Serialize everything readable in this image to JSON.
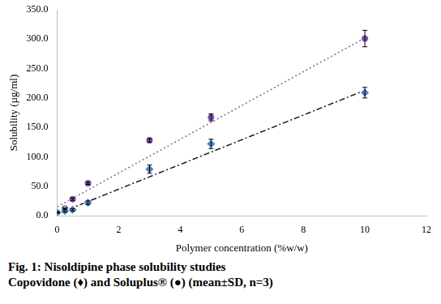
{
  "chart_data": {
    "type": "scatter",
    "caption": [
      "Fig. 1: Nisoldipine phase solubility studies",
      "Copovidone (♦) and Soluplus® (●) (mean±SD, n=3)"
    ],
    "x_label": "Polymer concentration (%w/w)",
    "y_label": "Solubility (µg/ml)",
    "xlim": [
      0,
      12
    ],
    "xticks": [
      0,
      2,
      4,
      6,
      8,
      10,
      12
    ],
    "ylim": [
      0,
      350
    ],
    "yticks": [
      {
        "value": 0,
        "label": "0.0"
      },
      {
        "value": 50,
        "label": "50.0"
      },
      {
        "value": 100,
        "label": "100.0"
      },
      {
        "value": 150,
        "label": "150.0"
      },
      {
        "value": 200,
        "label": "200.0"
      },
      {
        "value": 250,
        "label": "250.0"
      },
      {
        "value": 300,
        "label": "300.0"
      },
      {
        "value": 350,
        "label": "350.0"
      }
    ],
    "grid": false,
    "series": [
      {
        "type": "line",
        "color": "#1a1a1a",
        "line_style": "dashdot",
        "x": [
          0,
          10
        ],
        "values": [
          3,
          213
        ]
      },
      {
        "type": "line",
        "color": "#8064a2",
        "line_style": "dotted",
        "x": [
          0,
          10
        ],
        "values": [
          15,
          302
        ]
      },
      {
        "name": "Copovidone",
        "type": "scatter",
        "color": "#4f81bd",
        "marker": "diamond",
        "x": [
          0,
          0.25,
          0.5,
          1,
          3,
          5,
          10
        ],
        "values": [
          5,
          8,
          10,
          22,
          79,
          122,
          209
        ],
        "errors": [
          1,
          2,
          2,
          3,
          7,
          8,
          9
        ]
      },
      {
        "name": "Soluplus®",
        "type": "scatter",
        "color": "#7b4fa6",
        "marker": "circle",
        "x": [
          0,
          0.25,
          0.5,
          1,
          3,
          5,
          10
        ],
        "values": [
          6,
          12,
          28,
          55,
          128,
          167,
          301
        ],
        "errors": [
          1,
          1,
          2,
          2,
          3,
          6,
          14
        ]
      }
    ]
  }
}
